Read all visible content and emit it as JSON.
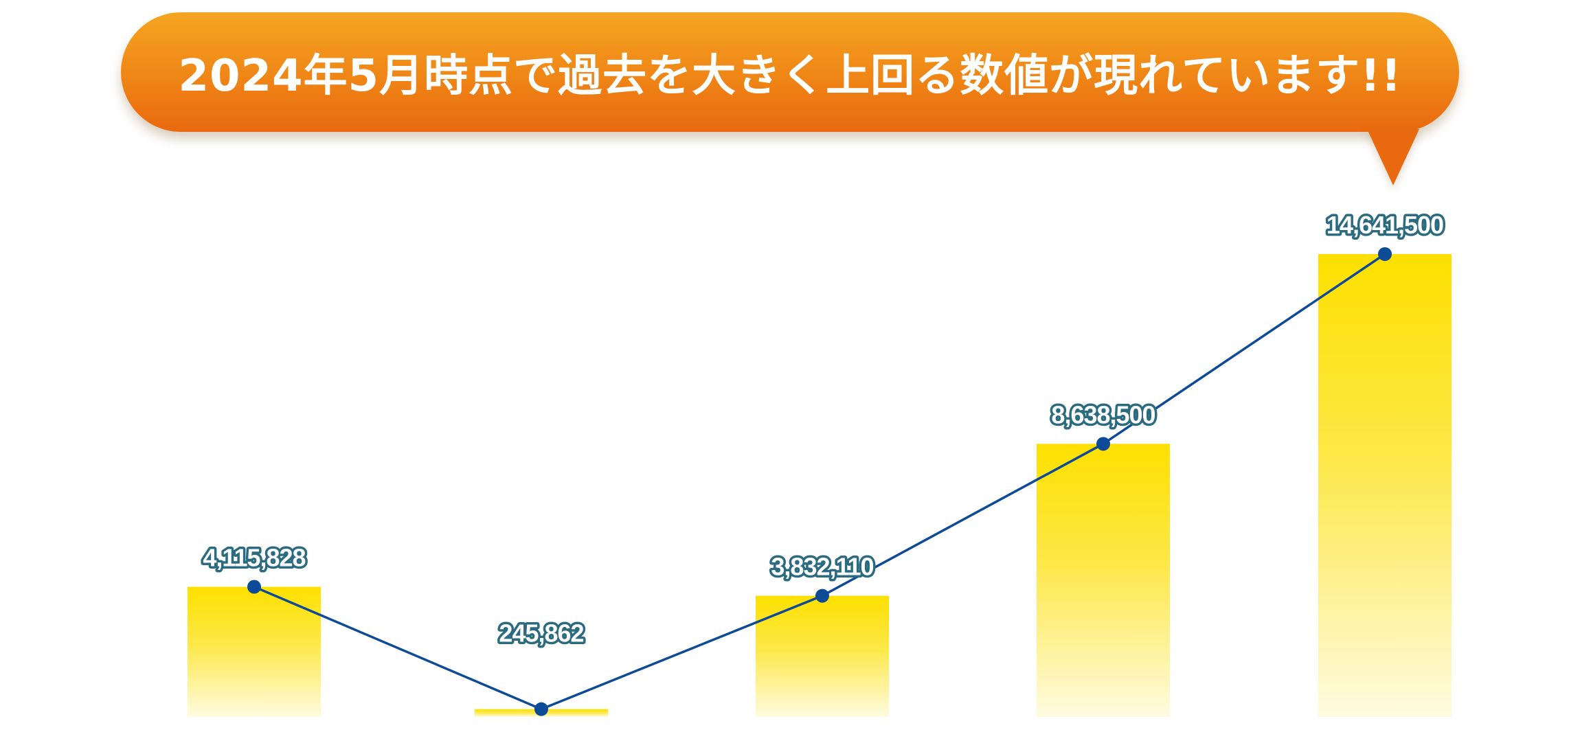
{
  "headline": {
    "text": "2024年5月時点で過去を大きく上回る数値が現れています!!"
  },
  "colors": {
    "banner_top": "#f5a522",
    "banner_bottom": "#e9690f",
    "bar_top": "#fde000",
    "bar_bottom": "#fffbe0",
    "line": "#0d4a97",
    "marker": "#0d4a97",
    "label_text": "#ffffff",
    "label_outline": "#2b6b80"
  },
  "chart_data": {
    "type": "bar",
    "overlay": "line",
    "title": "",
    "xlabel": "",
    "ylabel": "",
    "grid": false,
    "ylim": [
      0,
      15500000
    ],
    "values": [
      4115828,
      245862,
      3832110,
      8638500,
      14641500
    ],
    "labels": [
      "4,115,828",
      "245,862",
      "3,832,110",
      "8,638,500",
      "14,641,500"
    ]
  }
}
